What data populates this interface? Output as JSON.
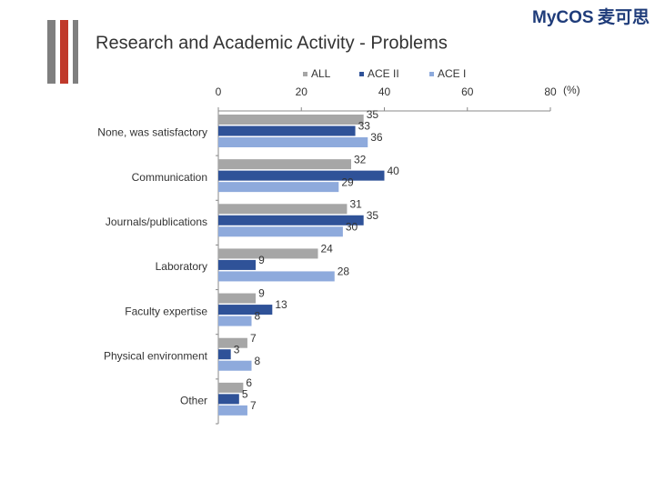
{
  "chart_data": {
    "type": "hbar",
    "title": "Research and Academic Activity - Problems",
    "logo": "MyCOS",
    "logo_cn": "麦可思",
    "x_unit": "(%)",
    "categories": [
      "None, was satisfactory",
      "Communication",
      "Journals/publications",
      "Laboratory",
      "Faculty expertise",
      "Physical environment",
      "Other"
    ],
    "series": [
      {
        "name": "ALL",
        "color": "#a6a6a6",
        "values": [
          35,
          32,
          31,
          24,
          9,
          7,
          6
        ]
      },
      {
        "name": "ACE II",
        "color": "#2f5298",
        "values": [
          33,
          40,
          35,
          9,
          13,
          3,
          5
        ]
      },
      {
        "name": "ACE I",
        "color": "#8eaadc",
        "values": [
          36,
          29,
          30,
          28,
          8,
          8,
          7
        ]
      }
    ],
    "xlim": [
      0,
      80
    ],
    "xticks": [
      0,
      20,
      40,
      60,
      80
    ]
  }
}
